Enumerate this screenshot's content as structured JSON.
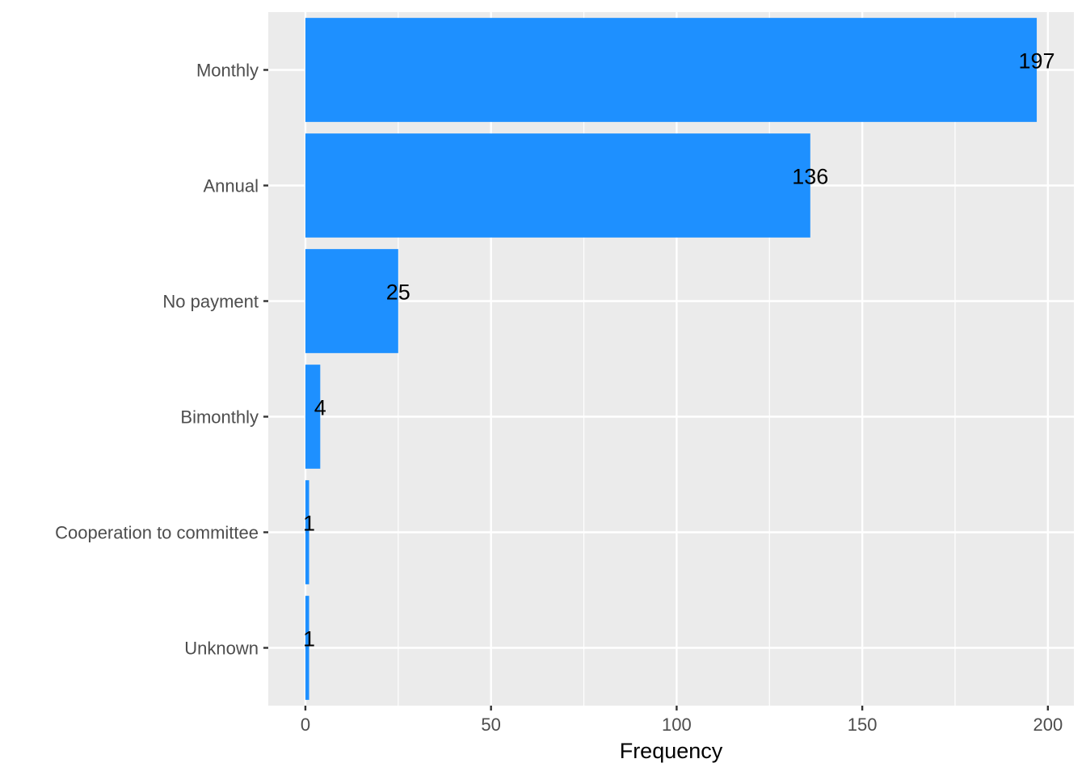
{
  "chart_data": {
    "type": "bar",
    "orientation": "horizontal",
    "categories": [
      "Monthly",
      "Annual",
      "No payment",
      "Bimonthly",
      "Cooperation to committee",
      "Unknown"
    ],
    "values": [
      197,
      136,
      25,
      4,
      1,
      1
    ],
    "data_labels": [
      "197",
      "136",
      "25",
      "4",
      "1",
      "1"
    ],
    "title": "",
    "xlabel": "Frequency",
    "ylabel": "",
    "xlim": [
      -10,
      207
    ],
    "x_ticks": [
      0,
      50,
      100,
      150,
      200
    ],
    "x_tick_labels": [
      "0",
      "50",
      "100",
      "150",
      "200"
    ],
    "grid": true,
    "legend": "none",
    "colors": {
      "bar": "#1E90FF",
      "panel_background": "#EBEBEB",
      "grid": "#FFFFFF",
      "text": "#000000",
      "tick_text": "#4D4D4D"
    }
  }
}
